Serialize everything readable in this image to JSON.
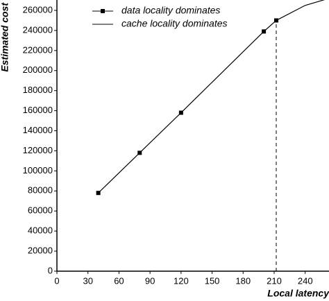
{
  "chart_data": {
    "type": "line",
    "x_label": "Local latency",
    "y_label": "Estimated cost",
    "series": [
      {
        "name": "data locality dominates",
        "color": "#000000",
        "marker": "square",
        "x": [
          40,
          80,
          120,
          200,
          212
        ],
        "values": [
          78000,
          118000,
          158000,
          239000,
          250000
        ]
      },
      {
        "name": "cache locality dominates",
        "color": "#000000",
        "marker": "none",
        "x": [
          212,
          240,
          263
        ],
        "values": [
          250000,
          265000,
          272000
        ]
      }
    ],
    "vline_x": 212,
    "xlim": [
      0,
      263
    ],
    "xticks": [
      0,
      30,
      60,
      90,
      120,
      150,
      180,
      210,
      240
    ],
    "ylim": [
      0,
      270000
    ],
    "yticks": [
      0,
      20000,
      40000,
      60000,
      80000,
      100000,
      120000,
      140000,
      160000,
      180000,
      200000,
      220000,
      240000,
      260000
    ]
  }
}
